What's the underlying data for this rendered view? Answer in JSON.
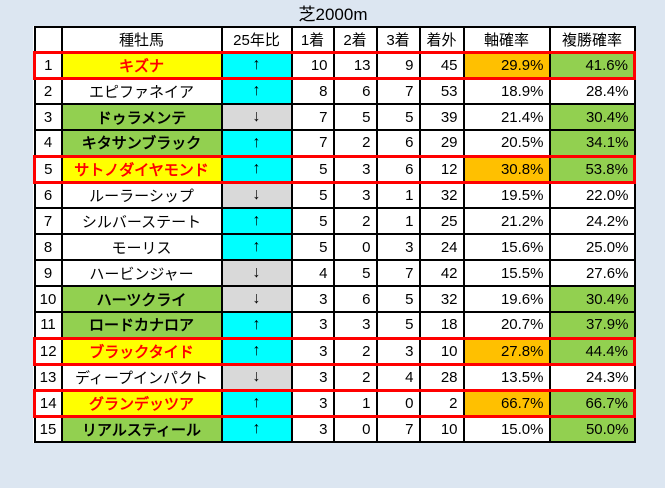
{
  "title": "芝2000m",
  "colors": {
    "page_bg": "#dce6f1",
    "cell_bg": "#ffffff",
    "yellow": "#ffff00",
    "green": "#92d050",
    "orange": "#ffc000",
    "cyan": "#00ffff",
    "gray": "#d9d9d9",
    "red": "#ff0000",
    "border": "#000000",
    "text": "#000000"
  },
  "icons": {
    "up_arrow": "↑",
    "down_arrow": "↓"
  },
  "table": {
    "columns": [
      "",
      "種牡馬",
      "25年比",
      "1着",
      "2着",
      "3着",
      "着外",
      "軸確率",
      "複勝確率"
    ],
    "rows": [
      {
        "rank": "1",
        "sire": "キズナ",
        "sire_style": "yellow",
        "trend": "up",
        "first": "10",
        "second": "13",
        "third": "9",
        "out": "45",
        "axis_prob": "29.9%",
        "axis_highlight": true,
        "place_prob": "41.6%",
        "place_highlight": true,
        "outlined": true
      },
      {
        "rank": "2",
        "sire": "エピファネイア",
        "sire_style": "plain",
        "trend": "up",
        "first": "8",
        "second": "6",
        "third": "7",
        "out": "53",
        "axis_prob": "18.9%",
        "axis_highlight": false,
        "place_prob": "28.4%",
        "place_highlight": false,
        "outlined": false
      },
      {
        "rank": "3",
        "sire": "ドゥラメンテ",
        "sire_style": "green",
        "trend": "down",
        "first": "7",
        "second": "5",
        "third": "5",
        "out": "39",
        "axis_prob": "21.4%",
        "axis_highlight": false,
        "place_prob": "30.4%",
        "place_highlight": true,
        "outlined": false
      },
      {
        "rank": "4",
        "sire": "キタサンブラック",
        "sire_style": "green",
        "trend": "up",
        "first": "7",
        "second": "2",
        "third": "6",
        "out": "29",
        "axis_prob": "20.5%",
        "axis_highlight": false,
        "place_prob": "34.1%",
        "place_highlight": true,
        "outlined": false
      },
      {
        "rank": "5",
        "sire": "サトノダイヤモンド",
        "sire_style": "yellow",
        "trend": "up",
        "first": "5",
        "second": "3",
        "third": "6",
        "out": "12",
        "axis_prob": "30.8%",
        "axis_highlight": true,
        "place_prob": "53.8%",
        "place_highlight": true,
        "outlined": true
      },
      {
        "rank": "6",
        "sire": "ルーラーシップ",
        "sire_style": "plain",
        "trend": "down",
        "first": "5",
        "second": "3",
        "third": "1",
        "out": "32",
        "axis_prob": "19.5%",
        "axis_highlight": false,
        "place_prob": "22.0%",
        "place_highlight": false,
        "outlined": false
      },
      {
        "rank": "7",
        "sire": "シルバーステート",
        "sire_style": "plain",
        "trend": "up",
        "first": "5",
        "second": "2",
        "third": "1",
        "out": "25",
        "axis_prob": "21.2%",
        "axis_highlight": false,
        "place_prob": "24.2%",
        "place_highlight": false,
        "outlined": false
      },
      {
        "rank": "8",
        "sire": "モーリス",
        "sire_style": "plain",
        "trend": "up",
        "first": "5",
        "second": "0",
        "third": "3",
        "out": "24",
        "axis_prob": "15.6%",
        "axis_highlight": false,
        "place_prob": "25.0%",
        "place_highlight": false,
        "outlined": false
      },
      {
        "rank": "9",
        "sire": "ハービンジャー",
        "sire_style": "plain",
        "trend": "down",
        "first": "4",
        "second": "5",
        "third": "7",
        "out": "42",
        "axis_prob": "15.5%",
        "axis_highlight": false,
        "place_prob": "27.6%",
        "place_highlight": false,
        "outlined": false
      },
      {
        "rank": "10",
        "sire": "ハーツクライ",
        "sire_style": "green",
        "trend": "down",
        "first": "3",
        "second": "6",
        "third": "5",
        "out": "32",
        "axis_prob": "19.6%",
        "axis_highlight": false,
        "place_prob": "30.4%",
        "place_highlight": true,
        "outlined": false
      },
      {
        "rank": "11",
        "sire": "ロードカナロア",
        "sire_style": "green",
        "trend": "up",
        "first": "3",
        "second": "3",
        "third": "5",
        "out": "18",
        "axis_prob": "20.7%",
        "axis_highlight": false,
        "place_prob": "37.9%",
        "place_highlight": true,
        "outlined": false
      },
      {
        "rank": "12",
        "sire": "ブラックタイド",
        "sire_style": "yellow",
        "trend": "up",
        "first": "3",
        "second": "2",
        "third": "3",
        "out": "10",
        "axis_prob": "27.8%",
        "axis_highlight": true,
        "place_prob": "44.4%",
        "place_highlight": true,
        "outlined": true
      },
      {
        "rank": "13",
        "sire": "ディープインパクト",
        "sire_style": "plain",
        "trend": "down",
        "first": "3",
        "second": "2",
        "third": "4",
        "out": "28",
        "axis_prob": "13.5%",
        "axis_highlight": false,
        "place_prob": "24.3%",
        "place_highlight": false,
        "outlined": false
      },
      {
        "rank": "14",
        "sire": "グランデッツア",
        "sire_style": "yellow",
        "trend": "up",
        "first": "3",
        "second": "1",
        "third": "0",
        "out": "2",
        "axis_prob": "66.7%",
        "axis_highlight": true,
        "place_prob": "66.7%",
        "place_highlight": true,
        "outlined": true
      },
      {
        "rank": "15",
        "sire": "リアルスティール",
        "sire_style": "green",
        "trend": "up",
        "first": "3",
        "second": "0",
        "third": "7",
        "out": "10",
        "axis_prob": "15.0%",
        "axis_highlight": false,
        "place_prob": "50.0%",
        "place_highlight": true,
        "outlined": false
      }
    ]
  }
}
